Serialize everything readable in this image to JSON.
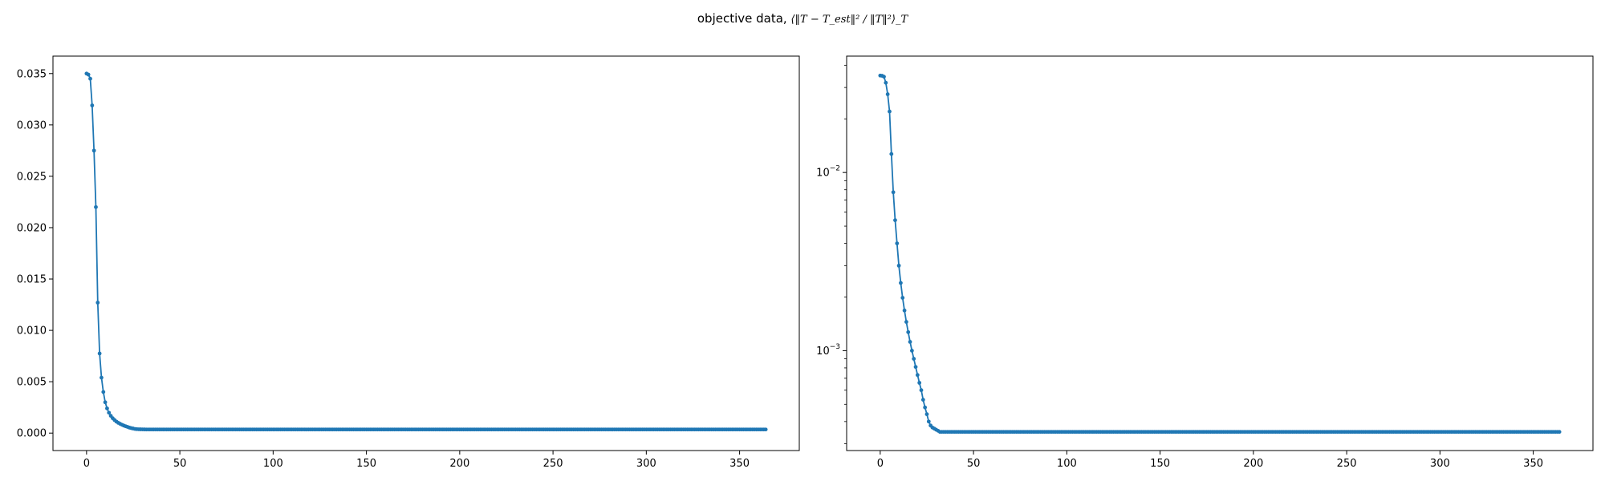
{
  "figure": {
    "title_prefix": "objective data, ",
    "title_math": "⟨‖T − T_est‖² / ‖T‖²⟩_T"
  },
  "chart_data": [
    {
      "type": "line",
      "title": "",
      "xlabel": "",
      "ylabel": "",
      "xlim": [
        -18,
        382
      ],
      "ylim": [
        -0.0017,
        0.0367
      ],
      "xticks": [
        0,
        50,
        100,
        150,
        200,
        250,
        300,
        350
      ],
      "yticks": [
        "0.000",
        "0.005",
        "0.010",
        "0.015",
        "0.020",
        "0.025",
        "0.030",
        "0.035"
      ],
      "y_scale": "linear",
      "grid": false,
      "legend": "none",
      "color": "#1f77b4",
      "marker": "dot",
      "series": [
        {
          "x_range": [
            0,
            364
          ],
          "values": [
            0.035,
            0.0349,
            0.0345,
            0.0319,
            0.0275,
            0.022,
            0.0127,
            0.00775,
            0.0054,
            0.004,
            0.003,
            0.0024,
            0.00198,
            0.00168,
            0.00145,
            0.00127,
            0.00112,
            0.001,
            0.0009,
            0.00081,
            0.00073,
            0.00066,
            0.0006,
            0.00053,
            0.00048,
            0.00044,
            0.0004,
            0.00038,
            0.00037,
            0.000365,
            0.00036,
            0.000355,
            0.00035
          ],
          "tail_value": 0.00035
        }
      ]
    },
    {
      "type": "line",
      "title": "",
      "xlabel": "",
      "ylabel": "",
      "xlim": [
        -18,
        382
      ],
      "ylim": [
        0.000275,
        0.045
      ],
      "xticks": [
        0,
        50,
        100,
        150,
        200,
        250,
        300,
        350
      ],
      "yticks": [
        {
          "value": 0.001,
          "base": "10",
          "exp": "−3"
        },
        {
          "value": 0.01,
          "base": "10",
          "exp": "−2"
        }
      ],
      "y_scale": "log",
      "grid": false,
      "legend": "none",
      "color": "#1f77b4",
      "marker": "dot",
      "series": [
        {
          "x_range": [
            0,
            364
          ],
          "values": [
            0.035,
            0.0349,
            0.0345,
            0.0319,
            0.0275,
            0.022,
            0.0127,
            0.00775,
            0.0054,
            0.004,
            0.003,
            0.0024,
            0.00198,
            0.00168,
            0.00145,
            0.00127,
            0.00112,
            0.001,
            0.0009,
            0.00081,
            0.00073,
            0.00066,
            0.0006,
            0.00053,
            0.00048,
            0.00044,
            0.0004,
            0.00038,
            0.00037,
            0.000365,
            0.00036,
            0.000355,
            0.00035
          ],
          "tail_value": 0.00035
        }
      ]
    }
  ]
}
